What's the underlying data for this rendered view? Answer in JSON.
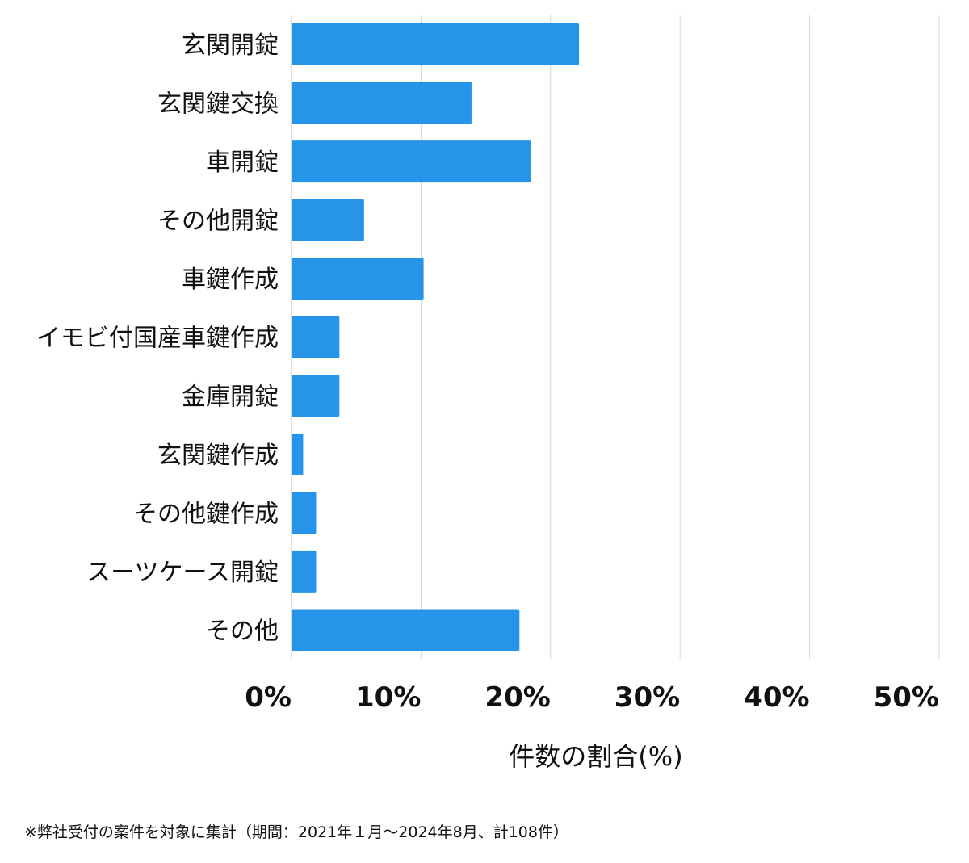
{
  "chart_data": {
    "type": "bar",
    "orientation": "horizontal",
    "categories": [
      "玄関開錠",
      "玄関鍵交換",
      "車開錠",
      "その他開錠",
      "車鍵作成",
      "イモビ付国産車鍵作成",
      "金庫開錠",
      "玄関鍵作成",
      "その他鍵作成",
      "スーツケース開錠",
      "その他"
    ],
    "values": [
      22.2,
      13.9,
      18.5,
      5.6,
      10.2,
      3.7,
      3.7,
      0.9,
      1.9,
      1.9,
      17.6
    ],
    "xlabel": "件数の割合(%)",
    "ylabel": "",
    "xlim": [
      0,
      50
    ],
    "xticks": [
      0,
      10,
      20,
      30,
      40,
      50
    ],
    "xtick_labels": [
      "0%",
      "10%",
      "20%",
      "30%",
      "40%",
      "50%"
    ],
    "grid": "vertical",
    "bar_color": "#2694e8"
  },
  "footnote": "※弊社受付の案件を対象に集計（期間：2021年１月〜2024年8月、計108件）"
}
